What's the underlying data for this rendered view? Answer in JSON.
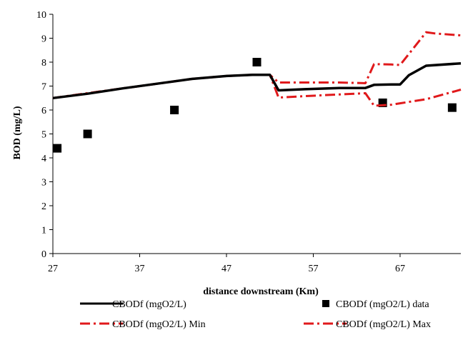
{
  "chart_data": {
    "type": "line",
    "title": "",
    "xlabel": "distance downstream (Km)",
    "ylabel": "BOD (mg/L)",
    "xlim": [
      27,
      74
    ],
    "ylim": [
      0,
      10
    ],
    "x_ticks": [
      27,
      37,
      47,
      57,
      67
    ],
    "y_ticks": [
      0,
      1,
      2,
      3,
      4,
      5,
      6,
      7,
      8,
      9,
      10
    ],
    "grid": false,
    "legend_position": "bottom",
    "series": [
      {
        "name": "CBODf (mgO2/L)",
        "style": "line",
        "color": "#000000",
        "x": [
          27,
          31,
          35,
          39,
          43,
          47,
          50,
          52,
          53,
          56,
          60,
          63,
          64,
          66,
          67,
          68,
          70,
          74
        ],
        "y": [
          6.5,
          6.68,
          6.9,
          7.1,
          7.3,
          7.42,
          7.47,
          7.47,
          6.82,
          6.87,
          6.92,
          6.92,
          7.05,
          7.07,
          7.07,
          7.45,
          7.85,
          7.95
        ]
      },
      {
        "name": "CBODf (mgO2/L) data",
        "style": "marker",
        "color": "#000000",
        "x": [
          27.5,
          31,
          41,
          50.5,
          65,
          73
        ],
        "y": [
          4.4,
          5.0,
          6.0,
          8.0,
          6.3,
          6.1
        ]
      },
      {
        "name": "CBODf (mgO2/L) Min",
        "style": "dashed",
        "color": "#e0191b",
        "x": [
          27,
          31,
          35,
          39,
          43,
          47,
          50,
          52,
          53,
          56,
          60,
          63,
          64,
          66,
          67,
          70,
          74
        ],
        "y": [
          6.5,
          6.7,
          6.9,
          7.1,
          7.3,
          7.42,
          7.47,
          7.47,
          6.52,
          6.58,
          6.65,
          6.7,
          6.18,
          6.22,
          6.28,
          6.45,
          6.85
        ]
      },
      {
        "name": "CBODf (mgO2/L) Max",
        "style": "dashed",
        "color": "#e0191b",
        "x": [
          27,
          31,
          35,
          39,
          43,
          47,
          50,
          52,
          53,
          56,
          60,
          63,
          64,
          66,
          67,
          70,
          71,
          74
        ],
        "y": [
          6.5,
          6.7,
          6.9,
          7.1,
          7.3,
          7.42,
          7.47,
          7.47,
          7.15,
          7.15,
          7.15,
          7.12,
          7.92,
          7.9,
          7.88,
          9.25,
          9.2,
          9.12
        ]
      }
    ]
  }
}
